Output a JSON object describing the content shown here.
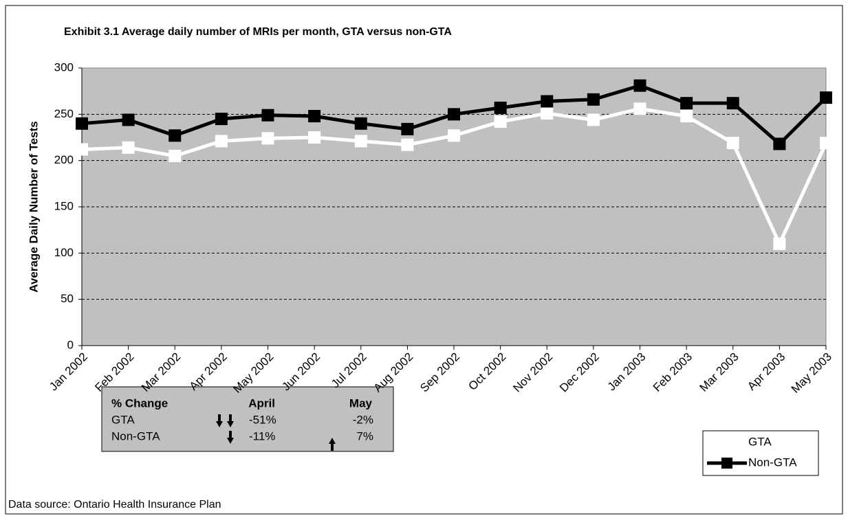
{
  "chart_data": {
    "type": "line",
    "title": "Exhibit 3.1 Average daily number of MRIs per month, GTA versus non-GTA",
    "y_label": "Average Daily Number of Tests",
    "categories": [
      "Jan 2002",
      "Feb 2002",
      "Mar 2002",
      "Apr 2002",
      "May 2002",
      "Jun 2002",
      "Jul 2002",
      "Aug 2002",
      "Sep 2002",
      "Oct 2002",
      "Nov 2002",
      "Dec 2002",
      "Jan 2003",
      "Feb 2003",
      "Mar 2003",
      "Apr 2003",
      "May 2003"
    ],
    "series": [
      {
        "name": "GTA",
        "color": "#ffffff",
        "values": [
          212,
          214,
          205,
          221,
          224,
          225,
          221,
          217,
          227,
          242,
          251,
          244,
          256,
          248,
          219,
          110,
          219
        ]
      },
      {
        "name": "Non-GTA",
        "color": "#000000",
        "values": [
          240,
          244,
          227,
          245,
          249,
          248,
          240,
          234,
          250,
          257,
          264,
          266,
          281,
          262,
          262,
          218,
          268
        ]
      }
    ],
    "ylim": [
      0,
      300
    ],
    "yticks": [
      0,
      50,
      100,
      150,
      200,
      250,
      300
    ],
    "grid": true,
    "legend": "bottom-right"
  },
  "change_table": {
    "header": [
      "% Change",
      "April",
      "May"
    ],
    "rows": [
      [
        "GTA",
        "-51%",
        "-2%"
      ],
      [
        "Non-GTA",
        "-11%",
        "7%"
      ]
    ]
  },
  "footer": "Data source: Ontario Health Insurance Plan"
}
